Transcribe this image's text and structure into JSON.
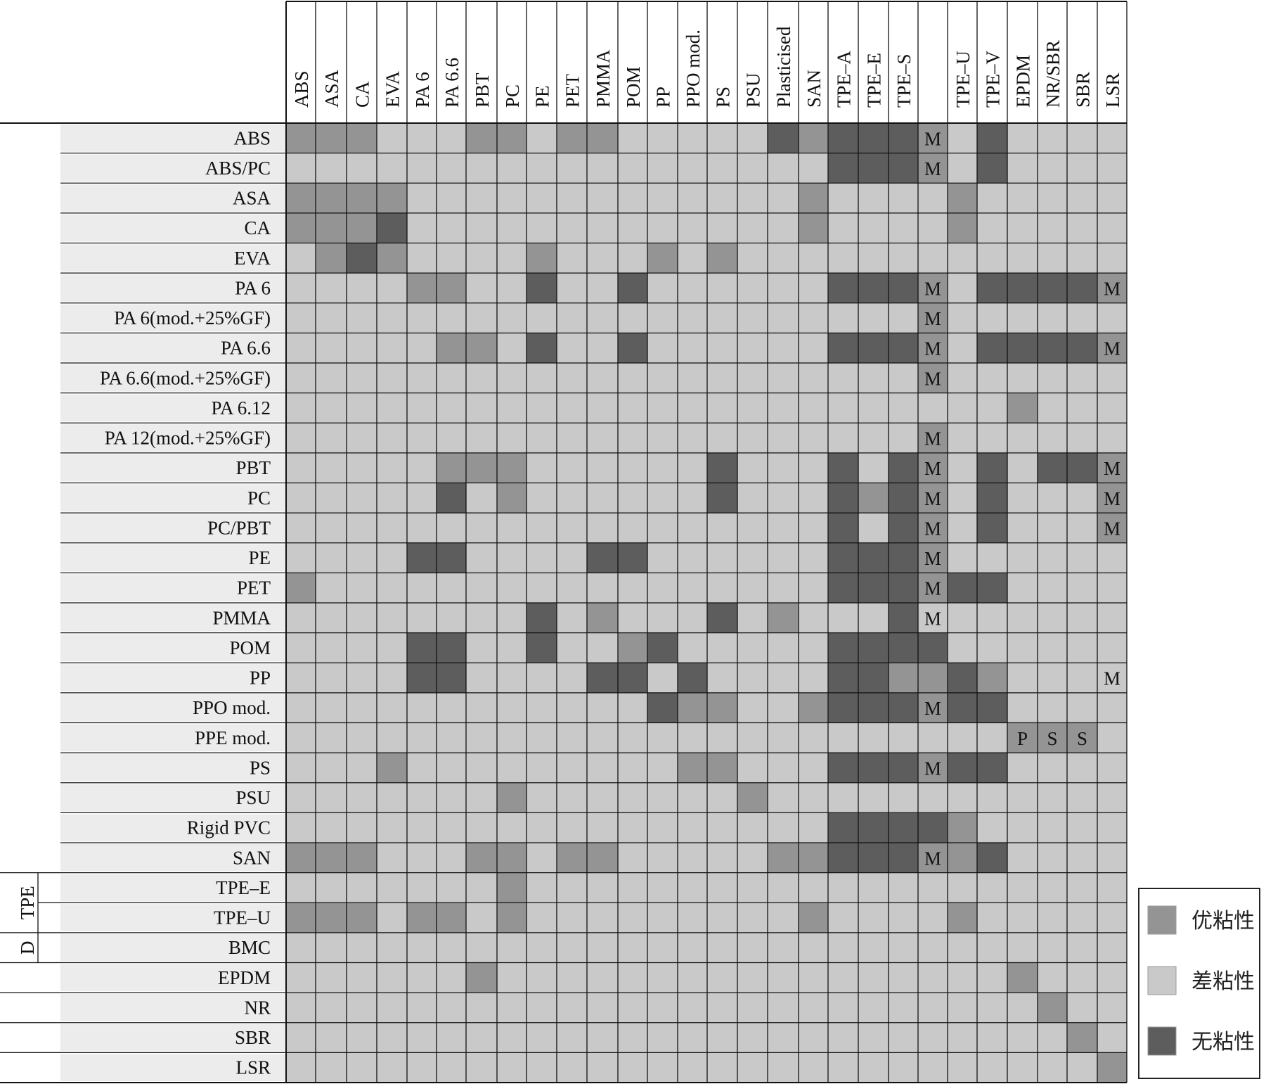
{
  "chart_data": {
    "type": "heatmap",
    "columns": [
      "ABS",
      "ASA",
      "CA",
      "EVA",
      "PA 6",
      "PA 6.6",
      "PBT",
      "PC",
      "PE",
      "PET",
      "PMMA",
      "POM",
      "PP",
      "PPO mod.",
      "PS",
      "PSU",
      "Plasticised",
      "SAN",
      "TPE–A",
      "TPE–E",
      "TPE–S",
      "",
      "TPE–U",
      "TPE–V",
      "EPDM",
      "NR/SBR",
      "SBR",
      "LSR"
    ],
    "rows": [
      "ABS",
      "ABS/PC",
      "ASA",
      "CA",
      "EVA",
      "PA 6",
      "PA 6(mod.+25%GF)",
      "PA 6.6",
      "PA 6.6(mod.+25%GF)",
      "PA 6.12",
      "PA 12(mod.+25%GF)",
      "PBT",
      "PC",
      "PC/PBT",
      "PE",
      "PET",
      "PMMA",
      "POM",
      "PP",
      "PPO mod.",
      "PPE mod.",
      "PS",
      "PSU",
      "Rigid PVC",
      "SAN",
      "TPE–E",
      "TPE–U",
      "BMC",
      "EPDM",
      "NR",
      "SBR",
      "LSR"
    ],
    "row_groups": [
      {
        "label": "TPE",
        "start_row": 25,
        "end_row": 26
      },
      {
        "label": "D",
        "start_row": 27,
        "end_row": 27
      }
    ],
    "legend": [
      {
        "code": 1,
        "label": "优粘性",
        "color": "#949494"
      },
      {
        "code": 0,
        "label": "差粘性",
        "color": "#c9c9c9"
      },
      {
        "code": 2,
        "label": "无粘性",
        "color": "#5d5d5d"
      }
    ],
    "legend_placement": "bottom-right",
    "values": [
      [
        1,
        1,
        1,
        0,
        0,
        0,
        1,
        1,
        0,
        1,
        1,
        0,
        0,
        0,
        0,
        0,
        2,
        1,
        2,
        2,
        2,
        1,
        0,
        2,
        0,
        0,
        0,
        0
      ],
      [
        0,
        0,
        0,
        0,
        0,
        0,
        0,
        0,
        0,
        0,
        0,
        0,
        0,
        0,
        0,
        0,
        0,
        0,
        2,
        2,
        2,
        1,
        0,
        2,
        0,
        0,
        0,
        0
      ],
      [
        1,
        1,
        1,
        1,
        0,
        0,
        0,
        0,
        0,
        0,
        0,
        0,
        0,
        0,
        0,
        0,
        0,
        1,
        0,
        0,
        0,
        0,
        1,
        0,
        0,
        0,
        0,
        0
      ],
      [
        1,
        1,
        1,
        2,
        0,
        0,
        0,
        0,
        0,
        0,
        0,
        0,
        0,
        0,
        0,
        0,
        0,
        1,
        0,
        0,
        0,
        0,
        1,
        0,
        0,
        0,
        0,
        0
      ],
      [
        0,
        1,
        2,
        1,
        0,
        0,
        0,
        0,
        1,
        0,
        0,
        0,
        1,
        0,
        1,
        0,
        0,
        0,
        0,
        0,
        0,
        0,
        0,
        0,
        0,
        0,
        0,
        0
      ],
      [
        0,
        0,
        0,
        0,
        1,
        1,
        0,
        0,
        2,
        0,
        0,
        2,
        0,
        0,
        0,
        0,
        0,
        0,
        2,
        2,
        2,
        1,
        0,
        2,
        2,
        2,
        2,
        1
      ],
      [
        0,
        0,
        0,
        0,
        0,
        0,
        0,
        0,
        0,
        0,
        0,
        0,
        0,
        0,
        0,
        0,
        0,
        0,
        0,
        0,
        0,
        1,
        0,
        0,
        0,
        0,
        0,
        0
      ],
      [
        0,
        0,
        0,
        0,
        0,
        1,
        1,
        0,
        2,
        0,
        0,
        2,
        0,
        0,
        0,
        0,
        0,
        0,
        2,
        2,
        2,
        1,
        0,
        2,
        2,
        2,
        2,
        1
      ],
      [
        0,
        0,
        0,
        0,
        0,
        0,
        0,
        0,
        0,
        0,
        0,
        0,
        0,
        0,
        0,
        0,
        0,
        0,
        0,
        0,
        0,
        1,
        0,
        0,
        0,
        0,
        0,
        0
      ],
      [
        0,
        0,
        0,
        0,
        0,
        0,
        0,
        0,
        0,
        0,
        0,
        0,
        0,
        0,
        0,
        0,
        0,
        0,
        0,
        0,
        0,
        0,
        0,
        0,
        1,
        0,
        0,
        0
      ],
      [
        0,
        0,
        0,
        0,
        0,
        0,
        0,
        0,
        0,
        0,
        0,
        0,
        0,
        0,
        0,
        0,
        0,
        0,
        0,
        0,
        0,
        1,
        0,
        0,
        0,
        0,
        0,
        0
      ],
      [
        0,
        0,
        0,
        0,
        0,
        1,
        1,
        1,
        0,
        0,
        0,
        0,
        0,
        0,
        2,
        0,
        0,
        0,
        2,
        0,
        2,
        1,
        0,
        2,
        0,
        2,
        2,
        1
      ],
      [
        0,
        0,
        0,
        0,
        0,
        2,
        0,
        1,
        0,
        0,
        0,
        0,
        0,
        0,
        2,
        0,
        0,
        0,
        2,
        1,
        2,
        1,
        0,
        2,
        0,
        0,
        0,
        1
      ],
      [
        0,
        0,
        0,
        0,
        0,
        0,
        0,
        0,
        0,
        0,
        0,
        0,
        0,
        0,
        0,
        0,
        0,
        0,
        2,
        0,
        2,
        1,
        0,
        2,
        0,
        0,
        0,
        1
      ],
      [
        0,
        0,
        0,
        0,
        2,
        2,
        0,
        0,
        0,
        0,
        2,
        2,
        0,
        0,
        0,
        0,
        0,
        0,
        2,
        2,
        2,
        1,
        0,
        0,
        0,
        0,
        0,
        0
      ],
      [
        1,
        0,
        0,
        0,
        0,
        0,
        0,
        0,
        0,
        0,
        0,
        0,
        0,
        0,
        0,
        0,
        0,
        0,
        2,
        2,
        2,
        1,
        2,
        2,
        0,
        0,
        0,
        0
      ],
      [
        0,
        0,
        0,
        0,
        0,
        0,
        0,
        0,
        2,
        0,
        1,
        0,
        0,
        0,
        2,
        0,
        1,
        0,
        0,
        0,
        2,
        0,
        0,
        0,
        0,
        0,
        0,
        0
      ],
      [
        0,
        0,
        0,
        0,
        2,
        2,
        0,
        0,
        2,
        0,
        0,
        1,
        2,
        0,
        0,
        0,
        0,
        0,
        2,
        2,
        2,
        2,
        0,
        0,
        0,
        0,
        0,
        0
      ],
      [
        0,
        0,
        0,
        0,
        2,
        2,
        0,
        0,
        0,
        0,
        2,
        2,
        0,
        2,
        0,
        0,
        0,
        0,
        2,
        2,
        1,
        1,
        2,
        1,
        0,
        0,
        0,
        0
      ],
      [
        0,
        0,
        0,
        0,
        0,
        0,
        0,
        0,
        0,
        0,
        0,
        0,
        2,
        1,
        1,
        0,
        0,
        1,
        2,
        2,
        2,
        1,
        2,
        2,
        0,
        0,
        0,
        0
      ],
      [
        0,
        0,
        0,
        0,
        0,
        0,
        0,
        0,
        0,
        0,
        0,
        0,
        0,
        0,
        0,
        0,
        0,
        0,
        0,
        0,
        0,
        0,
        0,
        0,
        1,
        1,
        1,
        0
      ],
      [
        0,
        0,
        0,
        1,
        0,
        0,
        0,
        0,
        0,
        0,
        0,
        0,
        0,
        1,
        1,
        0,
        0,
        0,
        2,
        2,
        2,
        1,
        2,
        2,
        0,
        0,
        0,
        0
      ],
      [
        0,
        0,
        0,
        0,
        0,
        0,
        0,
        1,
        0,
        0,
        0,
        0,
        0,
        0,
        0,
        1,
        0,
        0,
        0,
        0,
        0,
        0,
        0,
        0,
        0,
        0,
        0,
        0
      ],
      [
        0,
        0,
        0,
        0,
        0,
        0,
        0,
        0,
        0,
        0,
        0,
        0,
        0,
        0,
        0,
        0,
        0,
        0,
        2,
        2,
        2,
        2,
        1,
        0,
        0,
        0,
        0,
        0
      ],
      [
        1,
        1,
        1,
        0,
        0,
        0,
        1,
        1,
        0,
        1,
        1,
        0,
        0,
        0,
        0,
        0,
        1,
        1,
        2,
        2,
        2,
        1,
        1,
        2,
        0,
        0,
        0,
        0
      ],
      [
        0,
        0,
        0,
        0,
        0,
        0,
        0,
        1,
        0,
        0,
        0,
        0,
        0,
        0,
        0,
        0,
        0,
        0,
        0,
        0,
        0,
        0,
        0,
        0,
        0,
        0,
        0,
        0
      ],
      [
        1,
        1,
        1,
        0,
        1,
        1,
        0,
        1,
        0,
        0,
        0,
        0,
        0,
        0,
        0,
        0,
        0,
        1,
        0,
        0,
        0,
        0,
        1,
        0,
        0,
        0,
        0,
        0
      ],
      [
        0,
        0,
        0,
        0,
        0,
        0,
        0,
        0,
        0,
        0,
        0,
        0,
        0,
        0,
        0,
        0,
        0,
        0,
        0,
        0,
        0,
        0,
        0,
        0,
        0,
        0,
        0,
        0
      ],
      [
        0,
        0,
        0,
        0,
        0,
        0,
        1,
        0,
        0,
        0,
        0,
        0,
        0,
        0,
        0,
        0,
        0,
        0,
        0,
        0,
        0,
        0,
        0,
        0,
        1,
        0,
        0,
        0
      ],
      [
        0,
        0,
        0,
        0,
        0,
        0,
        0,
        0,
        0,
        0,
        0,
        0,
        0,
        0,
        0,
        0,
        0,
        0,
        0,
        0,
        0,
        0,
        0,
        0,
        0,
        1,
        0,
        0
      ],
      [
        0,
        0,
        0,
        0,
        0,
        0,
        0,
        0,
        0,
        0,
        0,
        0,
        0,
        0,
        0,
        0,
        0,
        0,
        0,
        0,
        0,
        0,
        0,
        0,
        0,
        0,
        1,
        0
      ],
      [
        0,
        0,
        0,
        0,
        0,
        0,
        0,
        0,
        0,
        0,
        0,
        0,
        0,
        0,
        0,
        0,
        0,
        0,
        0,
        0,
        0,
        0,
        0,
        0,
        0,
        0,
        0,
        1
      ]
    ],
    "cell_markers": [
      {
        "row": 0,
        "col": 21,
        "text": "M"
      },
      {
        "row": 1,
        "col": 21,
        "text": "M"
      },
      {
        "row": 5,
        "col": 21,
        "text": "M"
      },
      {
        "row": 5,
        "col": 27,
        "text": "M"
      },
      {
        "row": 6,
        "col": 21,
        "text": "M"
      },
      {
        "row": 7,
        "col": 21,
        "text": "M"
      },
      {
        "row": 7,
        "col": 27,
        "text": "M"
      },
      {
        "row": 8,
        "col": 21,
        "text": "M"
      },
      {
        "row": 10,
        "col": 21,
        "text": "M"
      },
      {
        "row": 11,
        "col": 21,
        "text": "M"
      },
      {
        "row": 11,
        "col": 27,
        "text": "M"
      },
      {
        "row": 12,
        "col": 21,
        "text": "M"
      },
      {
        "row": 12,
        "col": 27,
        "text": "M"
      },
      {
        "row": 13,
        "col": 21,
        "text": "M"
      },
      {
        "row": 13,
        "col": 27,
        "text": "M"
      },
      {
        "row": 14,
        "col": 21,
        "text": "M"
      },
      {
        "row": 15,
        "col": 21,
        "text": "M"
      },
      {
        "row": 16,
        "col": 21,
        "text": "M"
      },
      {
        "row": 18,
        "col": 27,
        "text": "M"
      },
      {
        "row": 19,
        "col": 21,
        "text": "M"
      },
      {
        "row": 20,
        "col": 24,
        "text": "P"
      },
      {
        "row": 20,
        "col": 25,
        "text": "S"
      },
      {
        "row": 20,
        "col": 26,
        "text": "S"
      },
      {
        "row": 21,
        "col": 21,
        "text": "M"
      },
      {
        "row": 24,
        "col": 21,
        "text": "M"
      }
    ]
  }
}
